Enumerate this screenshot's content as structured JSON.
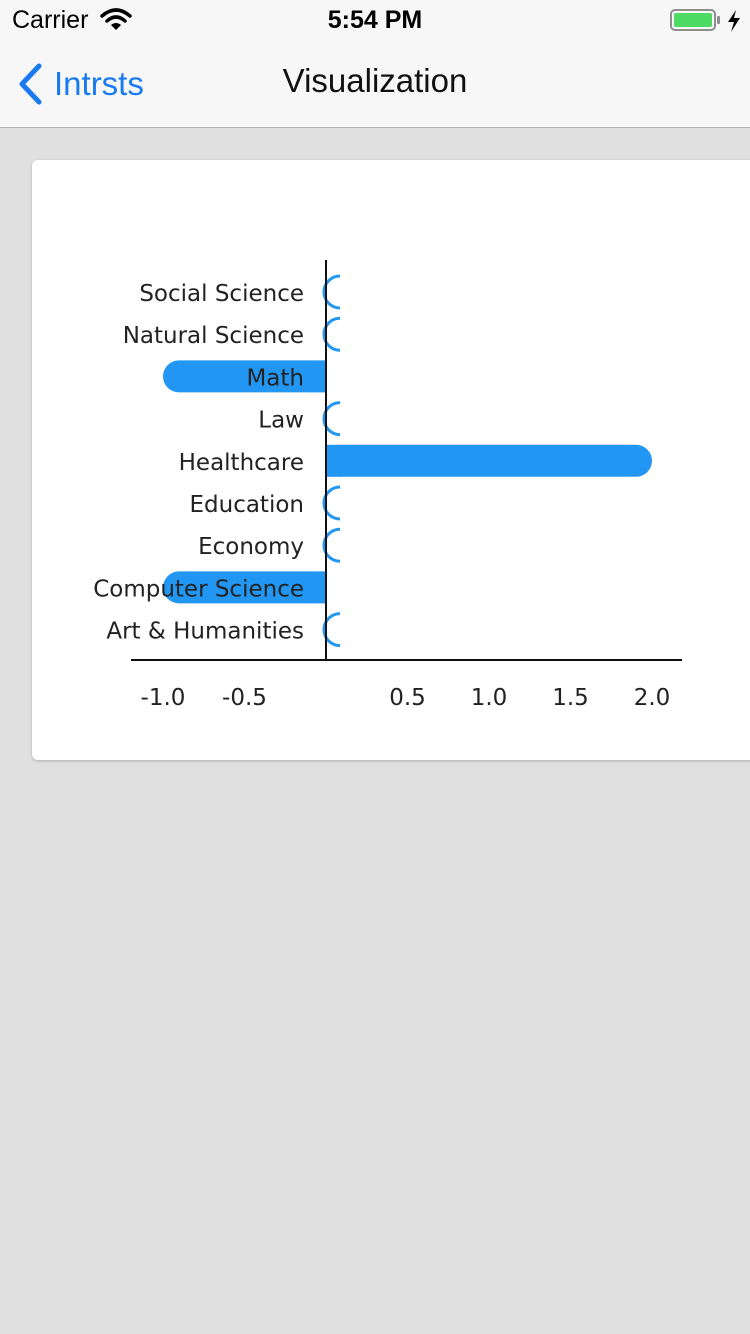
{
  "status_bar": {
    "carrier": "Carrier",
    "time": "5:54 PM"
  },
  "nav": {
    "back_label": "Intrsts",
    "title": "Visualization"
  },
  "colors": {
    "accent": "#1a7bf0",
    "bar": "#2196f3",
    "background": "#e0e0e0"
  },
  "chart_data": {
    "type": "bar",
    "orientation": "horizontal",
    "categories": [
      "Social Science",
      "Natural Science",
      "Math",
      "Law",
      "Healthcare",
      "Education",
      "Economy",
      "Computer Science",
      "Art & Humanities"
    ],
    "values": [
      0,
      0,
      -1.0,
      0,
      2.0,
      0,
      0,
      -1.0,
      0
    ],
    "x_ticks": [
      "-1.0",
      "-0.5",
      "0.5",
      "1.0",
      "1.5",
      "2.0"
    ],
    "xlim": [
      -1.2,
      2.2
    ],
    "grid": false
  }
}
